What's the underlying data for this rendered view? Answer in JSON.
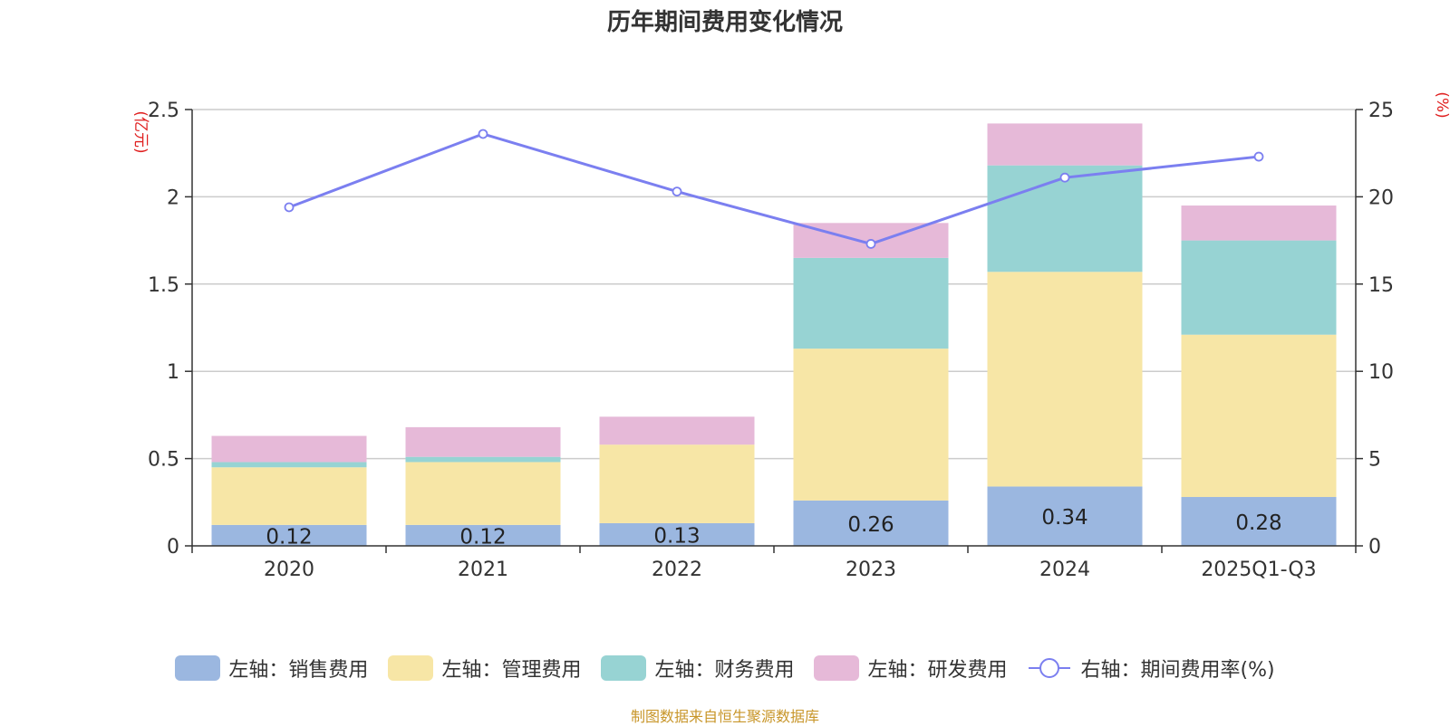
{
  "chart_data": {
    "type": "bar",
    "title": "历年期间费用变化情况",
    "categories": [
      "2020",
      "2021",
      "2022",
      "2023",
      "2024",
      "2025Q1-Q3"
    ],
    "series": [
      {
        "name": "左轴：销售费用",
        "axis": "left",
        "color": "#9bb7e0",
        "values": [
          0.12,
          0.12,
          0.13,
          0.26,
          0.34,
          0.28
        ],
        "labels": [
          "0.12",
          "0.12",
          "0.13",
          "0.26",
          "0.34",
          "0.28"
        ]
      },
      {
        "name": "左轴：管理费用",
        "axis": "left",
        "color": "#f7e6a6",
        "values": [
          0.33,
          0.36,
          0.45,
          0.87,
          1.23,
          0.93
        ]
      },
      {
        "name": "左轴：财务费用",
        "axis": "left",
        "color": "#97d3d3",
        "values": [
          0.03,
          0.03,
          0.0,
          0.52,
          0.61,
          0.54
        ]
      },
      {
        "name": "左轴：研发费用",
        "axis": "left",
        "color": "#e6b9d8",
        "values": [
          0.15,
          0.17,
          0.16,
          0.2,
          0.24,
          0.2
        ]
      },
      {
        "name": "右轴：期间费用率(%)",
        "axis": "right",
        "type": "line",
        "color": "#7b7ff0",
        "values": [
          19.4,
          23.6,
          20.3,
          17.3,
          21.1,
          22.3
        ]
      }
    ],
    "left_axis": {
      "label": "(亿元)",
      "min": 0,
      "max": 2.5,
      "ticks": [
        0,
        0.5,
        1,
        1.5,
        2,
        2.5
      ],
      "tick_labels": [
        "0",
        "0.5",
        "1",
        "1.5",
        "2",
        "2.5"
      ]
    },
    "right_axis": {
      "label": "(%)",
      "min": 0,
      "max": 25,
      "ticks": [
        0,
        5,
        10,
        15,
        20,
        25
      ],
      "tick_labels": [
        "0",
        "5",
        "10",
        "15",
        "20",
        "25"
      ]
    },
    "grid": true,
    "legend_position": "bottom",
    "source": "制图数据来自恒生聚源数据库"
  }
}
